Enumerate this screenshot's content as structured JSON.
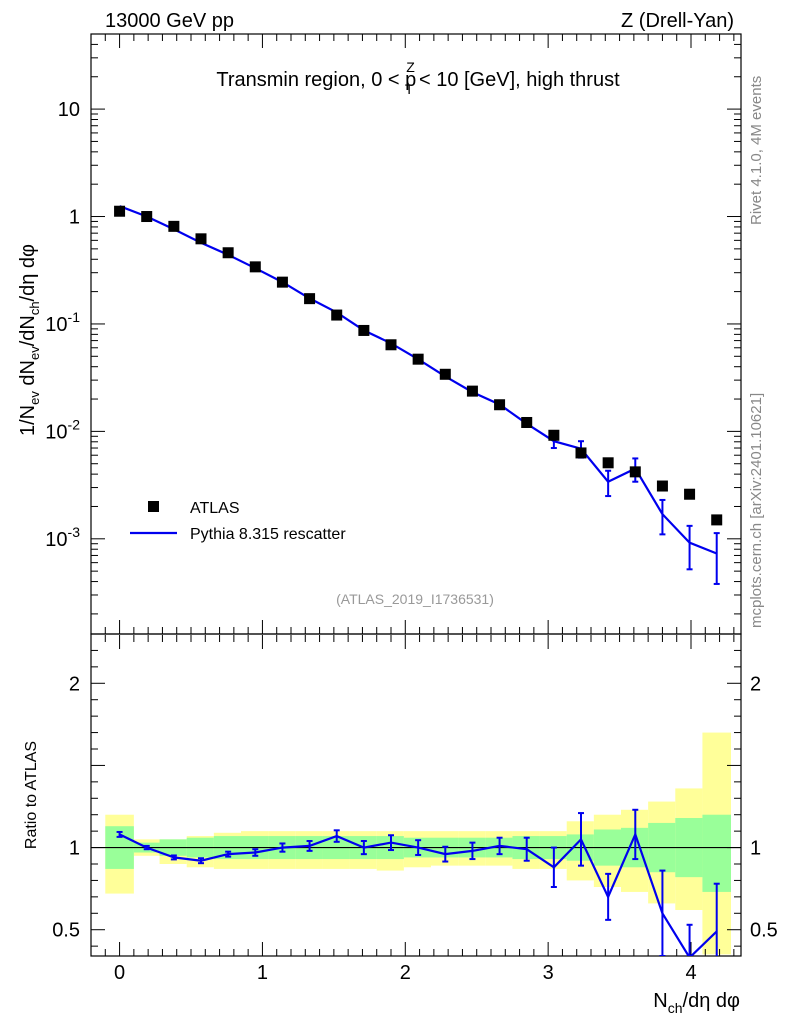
{
  "header": {
    "left": "13000 GeV pp",
    "right": "Z (Drell-Yan)"
  },
  "side_labels": {
    "top": "Rivet 4.1.0,  4M events",
    "bottom": "mcplots.cern.ch [arXiv:2401.10621]"
  },
  "analysis_tag": "(ATLAS_2019_I1736531)",
  "legend": {
    "data_label": "ATLAS",
    "mc_label": "Pythia 8.315 rescatter"
  },
  "colors": {
    "mc": "#0000ee",
    "data": "#000000",
    "band_inner": "#99ff99",
    "band_outer": "#ffff99"
  },
  "chart_data": [
    {
      "type": "line",
      "panel": "main",
      "title": {
        "prefix": "Transmin region, 0 < p",
        "sup": "Z",
        "sub": "T",
        "suffix": " < 10 [GeV], high thrust"
      },
      "ylabel": "1/N_ev dN_ev/dN_ch/dη dφ",
      "yscale": "log",
      "ylim": [
        0.00013,
        50
      ],
      "xlim": [
        -0.2,
        4.35
      ],
      "x_ticks": [
        "0",
        "1",
        "2",
        "3",
        "4"
      ],
      "y_ticks": [
        "10^-3",
        "10^-2",
        "10^-1",
        "1",
        "10"
      ],
      "x": [
        0.0,
        0.19,
        0.38,
        0.57,
        0.76,
        0.95,
        1.14,
        1.33,
        1.52,
        1.71,
        1.9,
        2.09,
        2.28,
        2.47,
        2.66,
        2.85,
        3.04,
        3.23,
        3.42,
        3.61,
        3.8,
        3.99,
        4.18
      ],
      "series": [
        {
          "name": "ATLAS",
          "kind": "markers",
          "values": [
            1.12,
            1.0,
            0.81,
            0.62,
            0.46,
            0.34,
            0.245,
            0.172,
            0.121,
            0.087,
            0.064,
            0.047,
            0.034,
            0.0237,
            0.0177,
            0.0121,
            0.0092,
            0.0063,
            0.0051,
            0.0042,
            0.0031,
            0.0026,
            0.0015
          ]
        },
        {
          "name": "Pythia 8.315 rescatter",
          "kind": "line",
          "values": [
            1.25,
            1.0,
            0.76,
            0.57,
            0.44,
            0.33,
            0.245,
            0.173,
            0.128,
            0.087,
            0.066,
            0.047,
            0.0325,
            0.0232,
            0.0178,
            0.0118,
            0.0081,
            0.0069,
            0.0034,
            0.0045,
            0.0017,
            0.00092,
            0.00073
          ],
          "err_lo": [
            0.03,
            0.02,
            0.015,
            0.01,
            0.01,
            0.006,
            0.004,
            0.003,
            0.002,
            0.0015,
            0.0012,
            0.0008,
            0.0006,
            0.0005,
            0.0004,
            0.0008,
            0.0011,
            0.0012,
            0.0009,
            0.0011,
            0.0006,
            0.0004,
            0.00035
          ],
          "err_hi": [
            0.03,
            0.02,
            0.015,
            0.01,
            0.01,
            0.006,
            0.004,
            0.003,
            0.002,
            0.0015,
            0.0012,
            0.0008,
            0.0006,
            0.0005,
            0.0004,
            0.0008,
            0.0011,
            0.0012,
            0.0009,
            0.0011,
            0.0006,
            0.0004,
            0.0004
          ]
        }
      ]
    },
    {
      "type": "line",
      "panel": "ratio",
      "ylabel": "Ratio to ATLAS",
      "ylim": [
        0.34,
        2.3
      ],
      "y_ticks": [
        0.5,
        1,
        2
      ],
      "xlabel": {
        "main": "N",
        "sub": "ch",
        "suffix": "/dη dφ"
      },
      "bin_edges": [
        -0.1,
        0.1,
        0.28,
        0.47,
        0.66,
        0.85,
        1.04,
        1.23,
        1.42,
        1.61,
        1.8,
        1.99,
        2.18,
        2.37,
        2.56,
        2.75,
        2.94,
        3.13,
        3.32,
        3.51,
        3.7,
        3.89,
        4.08,
        4.28
      ],
      "band_inner": [
        [
          0.87,
          1.13
        ],
        [
          0.97,
          1.03
        ],
        [
          0.95,
          1.05
        ],
        [
          0.94,
          1.06
        ],
        [
          0.93,
          1.07
        ],
        [
          0.93,
          1.07
        ],
        [
          0.93,
          1.07
        ],
        [
          0.93,
          1.07
        ],
        [
          0.93,
          1.07
        ],
        [
          0.93,
          1.07
        ],
        [
          0.93,
          1.07
        ],
        [
          0.94,
          1.06
        ],
        [
          0.94,
          1.06
        ],
        [
          0.94,
          1.06
        ],
        [
          0.94,
          1.06
        ],
        [
          0.93,
          1.07
        ],
        [
          0.93,
          1.07
        ],
        [
          0.92,
          1.08
        ],
        [
          0.89,
          1.11
        ],
        [
          0.88,
          1.12
        ],
        [
          0.85,
          1.15
        ],
        [
          0.82,
          1.18
        ],
        [
          0.73,
          1.2
        ]
      ],
      "band_outer": [
        [
          0.72,
          1.2
        ],
        [
          0.95,
          1.05
        ],
        [
          0.9,
          1.05
        ],
        [
          0.88,
          1.07
        ],
        [
          0.87,
          1.09
        ],
        [
          0.87,
          1.1
        ],
        [
          0.87,
          1.1
        ],
        [
          0.87,
          1.1
        ],
        [
          0.87,
          1.1
        ],
        [
          0.87,
          1.1
        ],
        [
          0.86,
          1.1
        ],
        [
          0.88,
          1.1
        ],
        [
          0.89,
          1.1
        ],
        [
          0.89,
          1.1
        ],
        [
          0.89,
          1.1
        ],
        [
          0.87,
          1.1
        ],
        [
          0.87,
          1.1
        ],
        [
          0.8,
          1.16
        ],
        [
          0.76,
          1.2
        ],
        [
          0.73,
          1.23
        ],
        [
          0.66,
          1.28
        ],
        [
          0.62,
          1.36
        ],
        [
          0.35,
          1.7
        ]
      ],
      "x": [
        0.0,
        0.19,
        0.38,
        0.57,
        0.76,
        0.95,
        1.14,
        1.33,
        1.52,
        1.71,
        1.9,
        2.09,
        2.28,
        2.47,
        2.66,
        2.85,
        3.04,
        3.23,
        3.42,
        3.61,
        3.8,
        3.99,
        4.18
      ],
      "series": [
        {
          "name": "Pythia 8.315 rescatter / ATLAS",
          "values": [
            1.08,
            1.0,
            0.94,
            0.92,
            0.96,
            0.97,
            1.0,
            1.01,
            1.07,
            1.0,
            1.03,
            1.0,
            0.96,
            0.98,
            1.01,
            0.99,
            0.88,
            1.05,
            0.7,
            1.08,
            0.6,
            0.33,
            0.49
          ],
          "err": [
            0.015,
            0.01,
            0.012,
            0.015,
            0.015,
            0.02,
            0.025,
            0.03,
            0.035,
            0.04,
            0.045,
            0.045,
            0.045,
            0.05,
            0.05,
            0.07,
            0.12,
            0.16,
            0.14,
            0.15,
            0.26,
            0.2,
            0.29
          ]
        }
      ]
    }
  ]
}
